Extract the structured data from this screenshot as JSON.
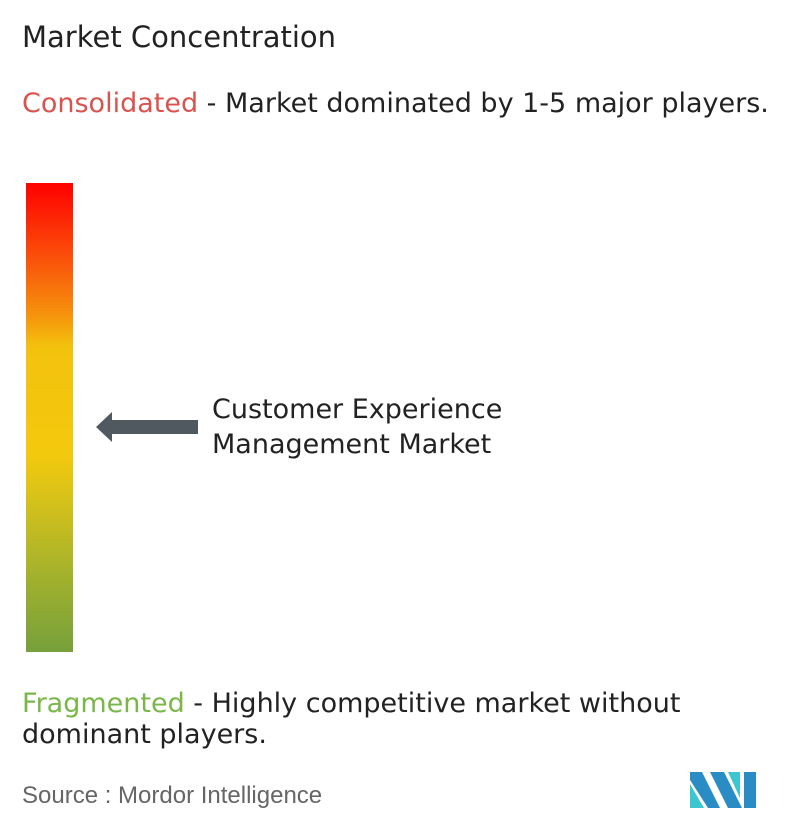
{
  "title": "Market Concentration",
  "consolidated": {
    "label": "Consolidated",
    "text": " - Market dominated by 1-5 major players.",
    "color": "#d9534f"
  },
  "fragmented": {
    "label": "Fragmented",
    "text": " - Highly competitive market without dominant players.",
    "color": "#7ab648"
  },
  "market_label": "Customer Experience Management Market",
  "source": "Source :  Mordor Intelligence",
  "logo_text": "MI",
  "arrow_color": "#505860"
}
